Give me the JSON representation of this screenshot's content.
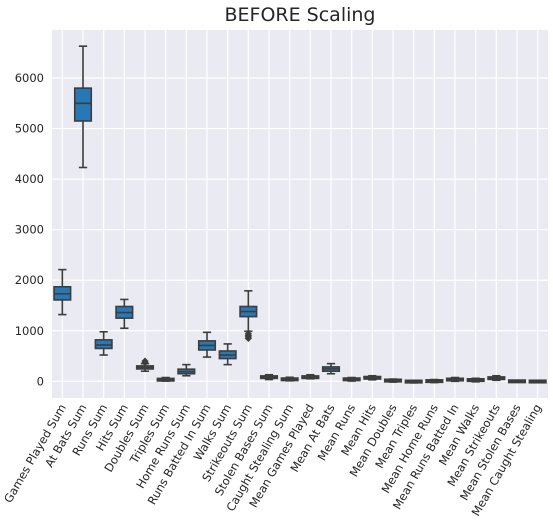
{
  "chart_data": {
    "type": "box",
    "title": "BEFORE Scaling",
    "xlabel": "",
    "ylabel": "",
    "ylim": [
      -330,
      6950
    ],
    "yticks": [
      0,
      1000,
      2000,
      3000,
      4000,
      5000,
      6000
    ],
    "grid": true,
    "legend": "none",
    "colors": {
      "box": "#2878b5",
      "line": "#3d3d3d",
      "background": "#eaeaf2",
      "grid": "#ffffff"
    },
    "categories": [
      "Games Played Sum",
      "At Bats Sum",
      "Runs Sum",
      "Hits Sum",
      "Doubles Sum",
      "Triples Sum",
      "Home Runs Sum",
      "Runs Batted In Sum",
      "Walks Sum",
      "Strikeouts Sum",
      "Stolen Bases Sum",
      "Caught Stealing Sum",
      "Mean Games Played",
      "Mean At Bats",
      "Mean Runs",
      "Mean Hits",
      "Mean Doubles",
      "Mean Triples",
      "Mean Home Runs",
      "Mean Runs Batted In",
      "Mean Walks",
      "Mean Strikeouts",
      "Mean Stolen Bases",
      "Mean Caught Stealing"
    ],
    "boxes": [
      {
        "min": 1320,
        "q1": 1610,
        "median": 1730,
        "q3": 1870,
        "max": 2210,
        "outliers": []
      },
      {
        "min": 4230,
        "q1": 5150,
        "median": 5500,
        "q3": 5800,
        "max": 6630,
        "outliers": []
      },
      {
        "min": 520,
        "q1": 650,
        "median": 720,
        "q3": 820,
        "max": 980,
        "outliers": []
      },
      {
        "min": 1050,
        "q1": 1250,
        "median": 1360,
        "q3": 1480,
        "max": 1620,
        "outliers": []
      },
      {
        "min": 200,
        "q1": 245,
        "median": 275,
        "q3": 305,
        "max": 350,
        "outliers": [
          370,
          400
        ]
      },
      {
        "min": 5,
        "q1": 20,
        "median": 30,
        "q3": 45,
        "max": 75,
        "outliers": []
      },
      {
        "min": 110,
        "q1": 150,
        "median": 190,
        "q3": 240,
        "max": 330,
        "outliers": []
      },
      {
        "min": 480,
        "q1": 620,
        "median": 710,
        "q3": 800,
        "max": 970,
        "outliers": []
      },
      {
        "min": 330,
        "q1": 450,
        "median": 520,
        "q3": 600,
        "max": 740,
        "outliers": []
      },
      {
        "min": 990,
        "q1": 1280,
        "median": 1380,
        "q3": 1480,
        "max": 1790,
        "outliers": [
          850,
          880,
          910,
          940
        ]
      },
      {
        "min": 35,
        "q1": 60,
        "median": 80,
        "q3": 105,
        "max": 130,
        "outliers": []
      },
      {
        "min": 10,
        "q1": 25,
        "median": 40,
        "q3": 55,
        "max": 80,
        "outliers": []
      },
      {
        "min": 50,
        "q1": 65,
        "median": 80,
        "q3": 100,
        "max": 130,
        "outliers": []
      },
      {
        "min": 150,
        "q1": 200,
        "median": 245,
        "q3": 285,
        "max": 350,
        "outliers": []
      },
      {
        "min": 5,
        "q1": 25,
        "median": 40,
        "q3": 55,
        "max": 75,
        "outliers": []
      },
      {
        "min": 30,
        "q1": 55,
        "median": 70,
        "q3": 85,
        "max": 110,
        "outliers": []
      },
      {
        "min": -15,
        "q1": 5,
        "median": 15,
        "q3": 25,
        "max": 45,
        "outliers": []
      },
      {
        "min": -30,
        "q1": -15,
        "median": -5,
        "q3": 5,
        "max": 20,
        "outliers": []
      },
      {
        "min": -25,
        "q1": -5,
        "median": 5,
        "q3": 15,
        "max": 35,
        "outliers": []
      },
      {
        "min": 0,
        "q1": 20,
        "median": 35,
        "q3": 50,
        "max": 75,
        "outliers": []
      },
      {
        "min": -10,
        "q1": 10,
        "median": 25,
        "q3": 40,
        "max": 60,
        "outliers": []
      },
      {
        "min": 20,
        "q1": 45,
        "median": 60,
        "q3": 80,
        "max": 110,
        "outliers": []
      },
      {
        "min": -8,
        "q1": -3,
        "median": 0,
        "q3": 3,
        "max": 8,
        "outliers": []
      },
      {
        "min": -25,
        "q1": -12,
        "median": -5,
        "q3": 5,
        "max": 20,
        "outliers": []
      }
    ]
  }
}
